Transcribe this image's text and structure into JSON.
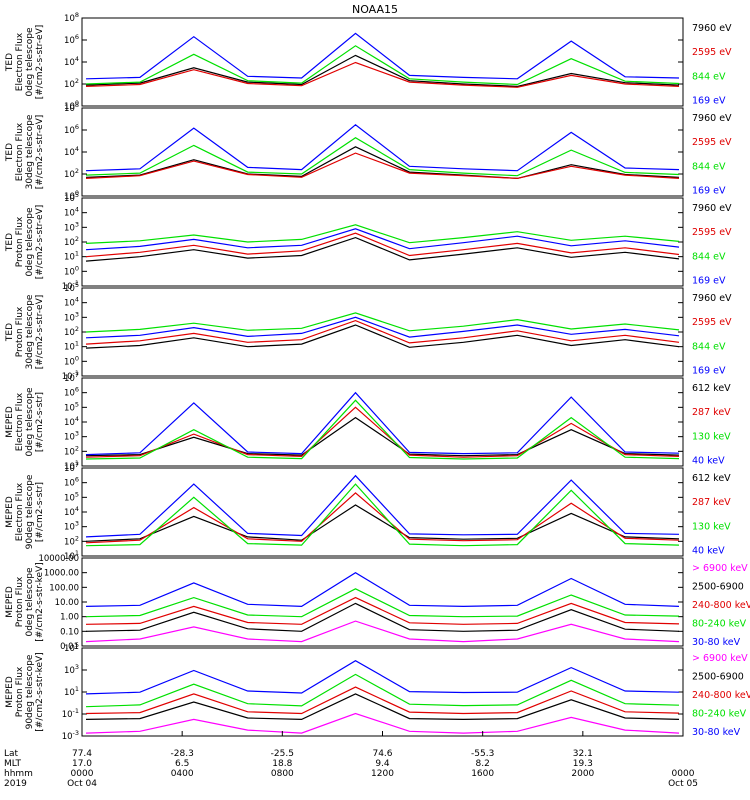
{
  "title": "NOAA15",
  "colors": {
    "black": "#000000",
    "red": "#e00000",
    "green": "#00e000",
    "blue": "#0000ff",
    "magenta": "#ff00ff"
  },
  "chart_data": [
    {
      "type": "line",
      "ylabel_lines": [
        "TED",
        "Electron Flux",
        "0deg telescope",
        "[#/cm2-s-str-eV]"
      ],
      "yscale": "log",
      "ytick_labels": [
        "10^0",
        "10^2",
        "10^4",
        "10^6",
        "10^8"
      ],
      "ylim": [
        1,
        100000000
      ],
      "series": [
        {
          "name": "7960 eV",
          "color": "black",
          "values": [
            80,
            120,
            3000,
            150,
            90,
            40000,
            200,
            100,
            60,
            900,
            130,
            80
          ]
        },
        {
          "name": "2595 eV",
          "color": "red",
          "values": [
            60,
            90,
            2000,
            110,
            70,
            9000,
            150,
            80,
            50,
            600,
            100,
            60
          ]
        },
        {
          "name": "844 eV",
          "color": "green",
          "values": [
            100,
            150,
            50000,
            200,
            120,
            300000,
            300,
            150,
            90,
            20000,
            180,
            110
          ]
        },
        {
          "name": "169 eV",
          "color": "blue",
          "values": [
            300,
            400,
            2000000,
            500,
            350,
            4000000,
            600,
            400,
            300,
            800000,
            450,
            350
          ]
        }
      ]
    },
    {
      "type": "line",
      "ylabel_lines": [
        "TED",
        "Electron Flux",
        "30deg telescope",
        "[#/cm2-s-str-eV]"
      ],
      "yscale": "log",
      "ytick_labels": [
        "10^0",
        "10^2",
        "10^4",
        "10^6",
        "10^8"
      ],
      "ylim": [
        1,
        100000000
      ],
      "series": [
        {
          "name": "7960 eV",
          "color": "black",
          "values": [
            50,
            80,
            2000,
            100,
            60,
            30000,
            150,
            80,
            40,
            700,
            90,
            50
          ]
        },
        {
          "name": "2595 eV",
          "color": "red",
          "values": [
            40,
            70,
            1500,
            90,
            50,
            8000,
            120,
            70,
            40,
            500,
            80,
            40
          ]
        },
        {
          "name": "844 eV",
          "color": "green",
          "values": [
            80,
            120,
            40000,
            150,
            100,
            200000,
            250,
            120,
            70,
            15000,
            140,
            90
          ]
        },
        {
          "name": "169 eV",
          "color": "blue",
          "values": [
            200,
            300,
            1500000,
            400,
            250,
            3000000,
            500,
            300,
            200,
            600000,
            350,
            250
          ]
        }
      ]
    },
    {
      "type": "line",
      "ylabel_lines": [
        "TED",
        "Proton Flux",
        "0deg telescope",
        "[#/cm2-s-str-eV]"
      ],
      "yscale": "log",
      "ytick_labels": [
        "10^-1",
        "10^0",
        "10^1",
        "10^2",
        "10^3",
        "10^4",
        "10^5"
      ],
      "ylim": [
        0.1,
        100000
      ],
      "series": [
        {
          "name": "7960 eV",
          "color": "black",
          "values": [
            5,
            10,
            30,
            8,
            12,
            200,
            6,
            15,
            40,
            9,
            20,
            7
          ]
        },
        {
          "name": "2595 eV",
          "color": "red",
          "values": [
            10,
            20,
            60,
            15,
            25,
            400,
            12,
            30,
            80,
            18,
            40,
            14
          ]
        },
        {
          "name": "844 eV",
          "color": "green",
          "values": [
            80,
            120,
            300,
            100,
            150,
            1500,
            90,
            200,
            500,
            130,
            250,
            110
          ]
        },
        {
          "name": "169 eV",
          "color": "blue",
          "values": [
            30,
            50,
            150,
            40,
            60,
            800,
            35,
            90,
            250,
            55,
            120,
            45
          ]
        }
      ]
    },
    {
      "type": "line",
      "ylabel_lines": [
        "TED",
        "Proton Flux",
        "30deg telescope",
        "[#/cm2-s-str-eV]"
      ],
      "yscale": "log",
      "ytick_labels": [
        "10^-1",
        "10^0",
        "10^1",
        "10^2",
        "10^3",
        "10^4",
        "10^5"
      ],
      "ylim": [
        0.1,
        100000
      ],
      "series": [
        {
          "name": "7960 eV",
          "color": "black",
          "values": [
            8,
            12,
            40,
            10,
            15,
            300,
            9,
            20,
            60,
            12,
            30,
            10
          ]
        },
        {
          "name": "2595 eV",
          "color": "red",
          "values": [
            15,
            25,
            80,
            20,
            30,
            600,
            18,
            40,
            120,
            25,
            60,
            20
          ]
        },
        {
          "name": "844 eV",
          "color": "green",
          "values": [
            100,
            150,
            400,
            130,
            180,
            2000,
            120,
            250,
            700,
            160,
            350,
            140
          ]
        },
        {
          "name": "169 eV",
          "color": "blue",
          "values": [
            40,
            60,
            200,
            50,
            80,
            1000,
            45,
            110,
            300,
            70,
            150,
            55
          ]
        }
      ]
    },
    {
      "type": "line",
      "ylabel_lines": [
        "MEPED",
        "Electron Flux",
        "0deg telescope",
        "[#/cm2-s-str]"
      ],
      "yscale": "log",
      "ytick_labels": [
        "10^1",
        "10^2",
        "10^3",
        "10^4",
        "10^5",
        "10^6",
        "10^7"
      ],
      "ylim": [
        10,
        10000000
      ],
      "series": [
        {
          "name": "612 keV",
          "color": "black",
          "values": [
            50,
            60,
            900,
            70,
            55,
            20000,
            65,
            50,
            60,
            3000,
            70,
            55
          ]
        },
        {
          "name": "287 keV",
          "color": "red",
          "values": [
            40,
            50,
            1500,
            60,
            45,
            100000,
            55,
            40,
            50,
            8000,
            60,
            45
          ]
        },
        {
          "name": "130 keV",
          "color": "green",
          "values": [
            30,
            35,
            3000,
            40,
            32,
            300000,
            38,
            30,
            35,
            20000,
            40,
            32
          ]
        },
        {
          "name": "40 keV",
          "color": "blue",
          "values": [
            60,
            80,
            200000,
            90,
            70,
            1000000,
            85,
            70,
            80,
            500000,
            90,
            75
          ]
        }
      ]
    },
    {
      "type": "line",
      "ylabel_lines": [
        "MEPED",
        "Electron Flux",
        "90deg telescope",
        "[#/cm2-s-str]"
      ],
      "yscale": "log",
      "ytick_labels": [
        "10^1",
        "10^2",
        "10^3",
        "10^4",
        "10^5",
        "10^6",
        "10^7"
      ],
      "ylim": [
        10,
        10000000
      ],
      "series": [
        {
          "name": "612 keV",
          "color": "black",
          "values": [
            100,
            150,
            5000,
            200,
            120,
            30000,
            180,
            140,
            160,
            8000,
            200,
            150
          ]
        },
        {
          "name": "287 keV",
          "color": "red",
          "values": [
            80,
            120,
            20000,
            150,
            100,
            200000,
            140,
            110,
            130,
            40000,
            160,
            120
          ]
        },
        {
          "name": "130 keV",
          "color": "green",
          "values": [
            50,
            60,
            100000,
            70,
            55,
            800000,
            65,
            50,
            60,
            300000,
            70,
            55
          ]
        },
        {
          "name": "40 keV",
          "color": "blue",
          "values": [
            200,
            300,
            800000,
            350,
            250,
            3000000,
            320,
            280,
            300,
            1500000,
            350,
            300
          ]
        }
      ]
    },
    {
      "type": "line",
      "ylabel_lines": [
        "MEPED",
        "Proton Flux",
        "0deg telescope",
        "[#/cm2-s-str-keV]"
      ],
      "yscale": "log",
      "ytick_labels": [
        "0.01",
        "0.10",
        "1.00",
        "10.00",
        "100.00",
        "1000.00",
        "10000.00"
      ],
      "ylim": [
        0.01,
        10000
      ],
      "series": [
        {
          "name": "> 6900 keV",
          "color": "magenta",
          "values": [
            0.02,
            0.03,
            0.2,
            0.03,
            0.02,
            0.5,
            0.03,
            0.02,
            0.03,
            0.3,
            0.03,
            0.02
          ]
        },
        {
          "name": "2500-6900",
          "color": "black",
          "values": [
            0.1,
            0.12,
            2,
            0.15,
            0.1,
            8,
            0.13,
            0.1,
            0.12,
            3,
            0.14,
            0.1
          ]
        },
        {
          "name": "240-800 keV",
          "color": "red",
          "values": [
            0.3,
            0.35,
            5,
            0.4,
            0.3,
            20,
            0.38,
            0.3,
            0.35,
            8,
            0.4,
            0.32
          ]
        },
        {
          "name": "80-240 keV",
          "color": "green",
          "values": [
            1,
            1.2,
            20,
            1.3,
            1,
            80,
            1.2,
            1,
            1.1,
            30,
            1.3,
            1.1
          ]
        },
        {
          "name": "30-80 keV",
          "color": "blue",
          "values": [
            5,
            6,
            200,
            7,
            5,
            1000,
            6,
            5,
            6,
            400,
            7,
            5
          ]
        }
      ]
    },
    {
      "type": "line",
      "ylabel_lines": [
        "MEPED",
        "Proton Flux",
        "90deg telescope",
        "[#/cm2-s-str-keV]"
      ],
      "yscale": "log",
      "ytick_labels": [
        "10^-3",
        "10^-1",
        "10^1",
        "10^3",
        "10^5"
      ],
      "ylim": [
        0.001,
        1000000
      ],
      "series": [
        {
          "name": "> 6900 keV",
          "color": "magenta",
          "values": [
            0.002,
            0.003,
            0.05,
            0.004,
            0.002,
            0.2,
            0.003,
            0.002,
            0.003,
            0.08,
            0.004,
            0.002
          ]
        },
        {
          "name": "2500-6900",
          "color": "black",
          "values": [
            0.05,
            0.06,
            3,
            0.07,
            0.05,
            20,
            0.06,
            0.05,
            0.06,
            5,
            0.07,
            0.05
          ]
        },
        {
          "name": "240-800 keV",
          "color": "red",
          "values": [
            0.2,
            0.25,
            20,
            0.3,
            0.2,
            100,
            0.28,
            0.2,
            0.25,
            40,
            0.3,
            0.22
          ]
        },
        {
          "name": "80-240 keV",
          "color": "green",
          "values": [
            1,
            1.5,
            200,
            2,
            1.2,
            2000,
            1.8,
            1.3,
            1.5,
            500,
            2,
            1.4
          ]
        },
        {
          "name": "30-80 keV",
          "color": "blue",
          "values": [
            20,
            30,
            5000,
            40,
            25,
            50000,
            35,
            28,
            30,
            10000,
            40,
            30
          ]
        }
      ]
    }
  ],
  "x_axis": {
    "row_labels": [
      "Lat",
      "MLT",
      "hhmm",
      "2019"
    ],
    "columns": [
      {
        "Lat": "77.4",
        "MLT": "17.0",
        "hhmm": "0000",
        "date": "Oct 04"
      },
      {
        "Lat": "-28.3",
        "MLT": "6.5",
        "hhmm": "0400",
        "date": ""
      },
      {
        "Lat": "-25.5",
        "MLT": "18.8",
        "hhmm": "0800",
        "date": ""
      },
      {
        "Lat": "74.6",
        "MLT": "9.4",
        "hhmm": "1200",
        "date": ""
      },
      {
        "Lat": "-55.3",
        "MLT": "8.2",
        "hhmm": "1600",
        "date": ""
      },
      {
        "Lat": "32.1",
        "MLT": "19.3",
        "hhmm": "2000",
        "date": ""
      },
      {
        "Lat": "",
        "MLT": "",
        "hhmm": "0000",
        "date": "Oct 05"
      }
    ]
  }
}
